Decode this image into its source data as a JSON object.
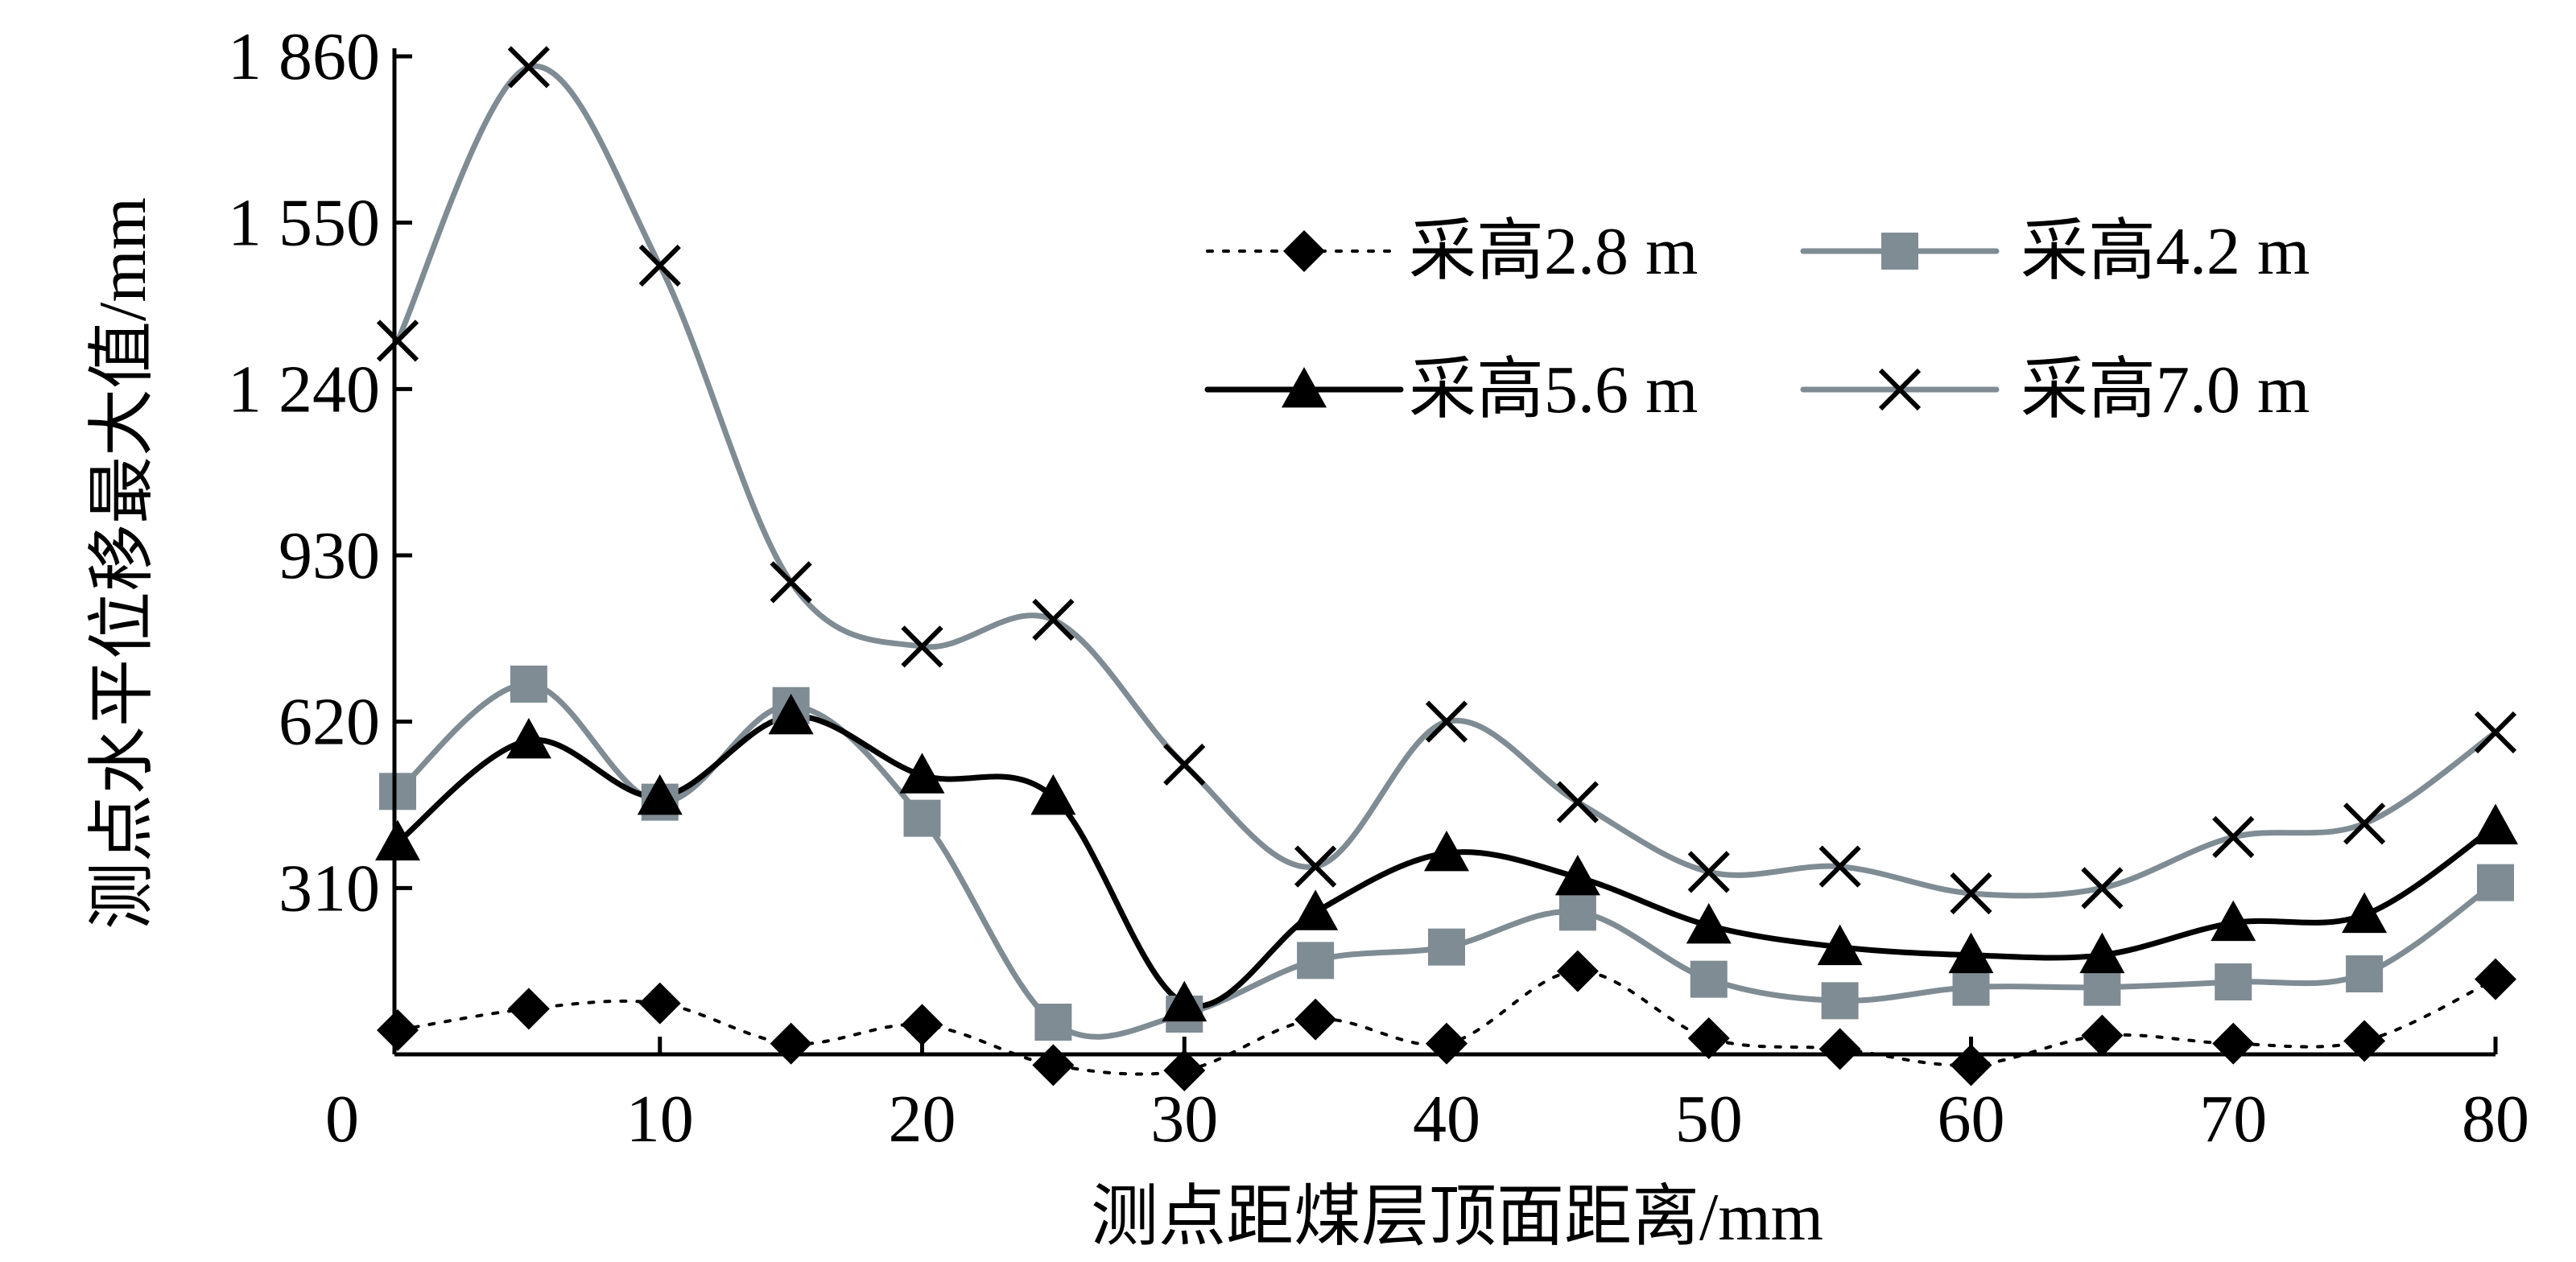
{
  "chart_data": {
    "type": "line",
    "title": "",
    "xlabel": "测点距煤层顶面距离/mm",
    "ylabel": "测点水平位移最大值/mm",
    "xlim": [
      0,
      80
    ],
    "ylim": [
      0,
      1860
    ],
    "x_ticks": [
      {
        "value": 0,
        "label": "0"
      },
      {
        "value": 10,
        "label": "10"
      },
      {
        "value": 20,
        "label": "20"
      },
      {
        "value": 30,
        "label": "30"
      },
      {
        "value": 40,
        "label": "40"
      },
      {
        "value": 50,
        "label": "50"
      },
      {
        "value": 60,
        "label": "60"
      },
      {
        "value": 70,
        "label": "70"
      },
      {
        "value": 80,
        "label": "80"
      }
    ],
    "y_ticks": [
      {
        "value": 310,
        "label": "310"
      },
      {
        "value": 620,
        "label": "620"
      },
      {
        "value": 930,
        "label": "930"
      },
      {
        "value": 1240,
        "label": "1 240"
      },
      {
        "value": 1550,
        "label": "1 550"
      },
      {
        "value": 1860,
        "label": "1 860"
      }
    ],
    "grid": false,
    "legend_position": "top-right",
    "x": [
      0,
      5,
      10,
      15,
      20,
      25,
      30,
      35,
      40,
      45,
      50,
      55,
      60,
      65,
      70,
      75,
      80
    ],
    "series": [
      {
        "name": "采高2.8 m",
        "color": "#000000",
        "line_style": "dotted",
        "marker": "diamond",
        "values": [
          45,
          85,
          95,
          20,
          55,
          -20,
          -30,
          65,
          20,
          155,
          30,
          10,
          -20,
          35,
          20,
          25,
          140
        ]
      },
      {
        "name": "采高4.2 m",
        "color": "#7f8c94",
        "line_style": "solid",
        "marker": "square",
        "values": [
          490,
          690,
          470,
          650,
          440,
          60,
          75,
          175,
          200,
          265,
          140,
          100,
          125,
          125,
          135,
          150,
          320
        ]
      },
      {
        "name": "采高5.6 m",
        "color": "#000000",
        "line_style": "solid",
        "marker": "triangle",
        "values": [
          395,
          585,
          480,
          630,
          520,
          480,
          95,
          265,
          375,
          330,
          240,
          200,
          185,
          185,
          245,
          260,
          425
        ]
      },
      {
        "name": "采高7.0 m",
        "color": "#7f8c94",
        "line_style": "solid",
        "marker": "cross",
        "values": [
          1330,
          1840,
          1470,
          880,
          760,
          810,
          540,
          350,
          620,
          470,
          340,
          350,
          300,
          310,
          405,
          430,
          600
        ]
      }
    ]
  }
}
